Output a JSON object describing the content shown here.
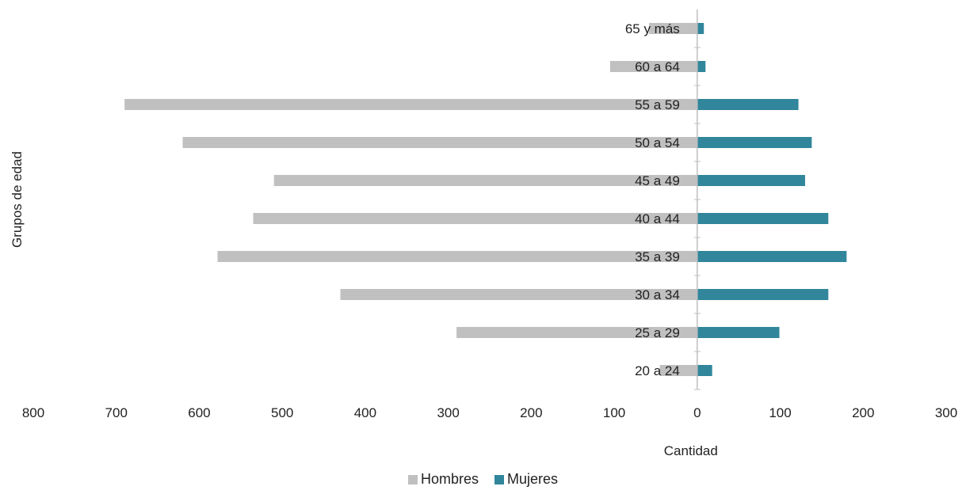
{
  "chart_data": {
    "type": "bar",
    "orientation": "horizontal",
    "categories": [
      "20 a 24",
      "25 a 29",
      "30 a 34",
      "35 a 39",
      "40 a 44",
      "45 a 49",
      "50 a 54",
      "55 a 59",
      "60 a 64",
      "65 y más"
    ],
    "series": [
      {
        "name": "Hombres",
        "color": "#c0c0c0",
        "values": [
          -45,
          -290,
          -430,
          -578,
          -535,
          -510,
          -620,
          -690,
          -105,
          -58
        ]
      },
      {
        "name": "Mujeres",
        "color": "#31869b",
        "values": [
          18,
          99,
          158,
          180,
          158,
          130,
          138,
          122,
          10,
          8
        ]
      }
    ],
    "xlabel": "Cantidad",
    "ylabel": "Grupos de edad",
    "xlim": [
      -800,
      300
    ],
    "xticks": [
      -800,
      -700,
      -600,
      -500,
      -400,
      -300,
      -200,
      -100,
      0,
      100,
      200,
      300
    ],
    "xtick_labels": [
      "800",
      "700",
      "600",
      "500",
      "400",
      "300",
      "200",
      "100",
      "0",
      "100",
      "200",
      "300"
    ],
    "grid": false,
    "legend_position": "bottom"
  }
}
